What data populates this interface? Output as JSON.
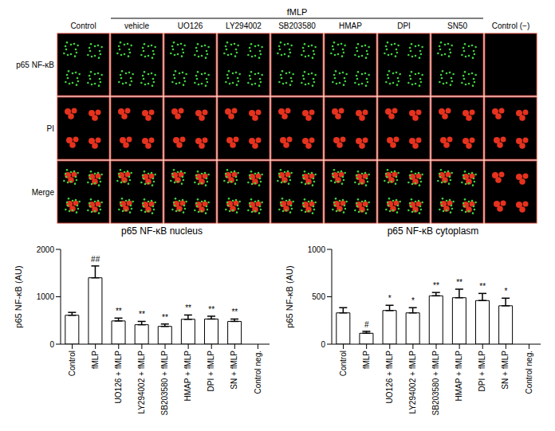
{
  "image_panel": {
    "group_label": "fMLP",
    "columns": [
      "Control",
      "vehicle",
      "UO126",
      "LY294002",
      "SB203580",
      "HMAP",
      "DPI",
      "SN50",
      "Control (−)"
    ],
    "rows": [
      "p65 NF-κB",
      "PI",
      "Merge"
    ]
  },
  "chart_data": [
    {
      "type": "bar",
      "title": "p65 NF-κB nucleus",
      "y_label": "p65 NF-κB (AU)",
      "categories": [
        "Control",
        "fMLP",
        "UO126 + fMLP",
        "LY294002 + fMLP",
        "SB203580 + fMLP",
        "HMAP + fMLP",
        "DPI + fMLP",
        "SN + fMLP",
        "Control neg."
      ],
      "values": [
        610,
        1400,
        490,
        410,
        375,
        525,
        530,
        480,
        0
      ],
      "errors": [
        60,
        250,
        60,
        70,
        50,
        90,
        60,
        50,
        0
      ],
      "annotations": [
        null,
        "##",
        "**",
        "**",
        "**",
        "**",
        "**",
        "**",
        null
      ],
      "color": "#ffffff",
      "ylim": [
        0,
        2000
      ],
      "yticks": [
        0,
        1000,
        2000
      ],
      "grid": false
    },
    {
      "type": "bar",
      "title": "p65 NF-κB cytoplasm",
      "y_label": "p65 NF-κB (AU)",
      "categories": [
        "Control",
        "fMLP",
        "UO126 + fMLP",
        "LY294002 + fMLP",
        "SB203580 + fMLP",
        "HMAP + fMLP",
        "DPI + fMLP",
        "SN + fMLP",
        "Control neg."
      ],
      "values": [
        330,
        115,
        355,
        330,
        510,
        490,
        460,
        405,
        0
      ],
      "errors": [
        55,
        20,
        55,
        55,
        35,
        90,
        75,
        80,
        0
      ],
      "annotations": [
        null,
        "#",
        "*",
        "*",
        "**",
        "**",
        "**",
        "*",
        null
      ],
      "color": "#ffffff",
      "ylim": [
        0,
        1000
      ],
      "yticks": [
        0,
        500,
        1000
      ],
      "grid": false
    }
  ]
}
